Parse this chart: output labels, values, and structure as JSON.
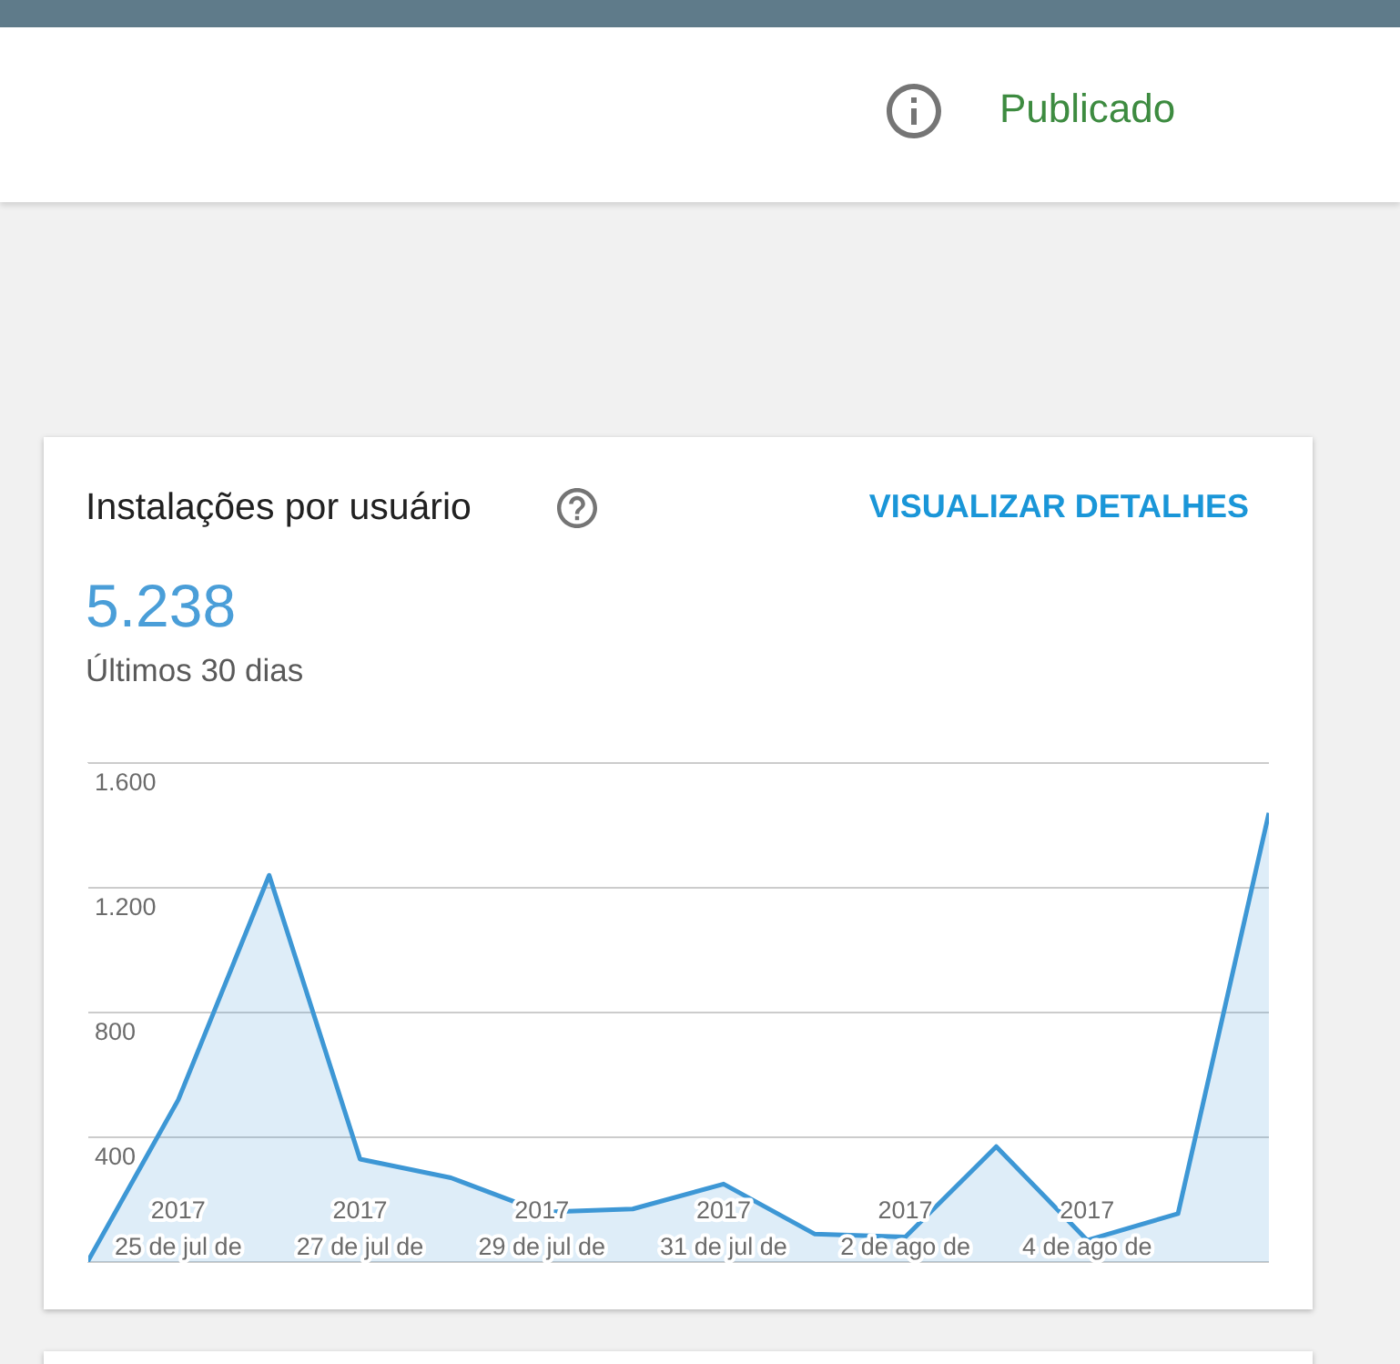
{
  "chart_data": {
    "type": "area",
    "title": "Instalações por usuário",
    "annotations": [
      "Publicado",
      "VISUALIZAR DETALHES",
      "5.238",
      "Últimos 30 dias"
    ],
    "categories": [
      null,
      "2017\n25 de jul de",
      null,
      "2017\n27 de jul de",
      null,
      "2017\n29 de jul de",
      null,
      "2017\n31 de jul de",
      null,
      "2017\n2 de ago de",
      null,
      "2017\n4 de ago de",
      null,
      null
    ],
    "values": [
      0,
      520,
      1240,
      330,
      270,
      160,
      170,
      250,
      90,
      80,
      370,
      70,
      155,
      1440
    ],
    "color": "#3d97d5",
    "ylim": [
      0,
      1600
    ],
    "yticks": [
      {
        "value": 0,
        "label": null
      },
      400,
      800,
      {
        "value": 1200,
        "label": "1.200"
      },
      {
        "value": 1600,
        "label": "1.600"
      }
    ],
    "grid": "y"
  }
}
